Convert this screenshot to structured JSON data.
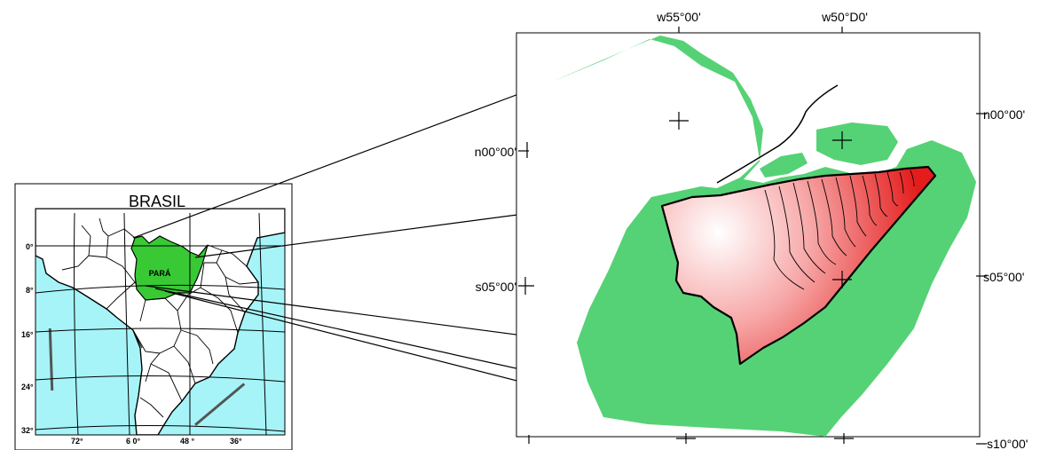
{
  "inset_map": {
    "title": "BRASIL",
    "state_label": "PARÁ",
    "latitude_labels": [
      "0°",
      "8°",
      "16°",
      "24°",
      "32°"
    ],
    "longitude_labels": [
      "72°",
      "6 0°",
      "48 °",
      "36°"
    ],
    "colors": {
      "ocean": "#a6f4f8",
      "state": "#39c935",
      "land": "#ffffff"
    }
  },
  "detail_map": {
    "longitude_labels": [
      "w55°00'",
      "w50°D0'"
    ],
    "latitude_labels_left": [
      "n00°00'",
      "s05°00'"
    ],
    "latitude_labels_right": [
      "n00°00'",
      "s05°00'",
      "s10°00'"
    ],
    "colors": {
      "state": "#55d275",
      "highlight_center": "#ffffff",
      "highlight_edge": "#e62222",
      "outline": "#000000"
    }
  }
}
